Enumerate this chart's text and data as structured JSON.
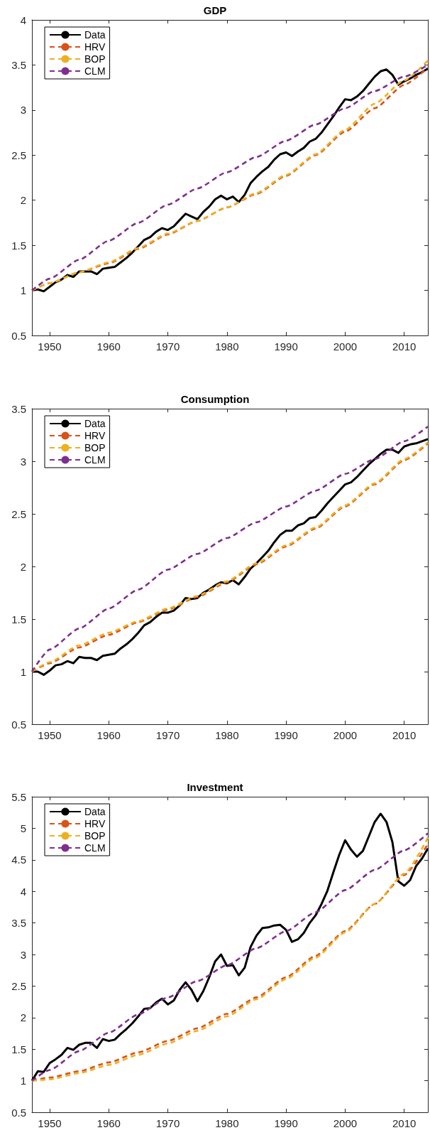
{
  "chart_data": [
    {
      "type": "line",
      "title": "GDP",
      "xlim": [
        1947,
        2014
      ],
      "xticks": [
        1950,
        1960,
        1970,
        1980,
        1990,
        2000,
        2010
      ],
      "ylim": [
        0.5,
        4
      ],
      "yticks": [
        0.5,
        1,
        1.5,
        2,
        2.5,
        3,
        3.5,
        4
      ],
      "grid": false,
      "legend": "top left",
      "marker": "none",
      "series": [
        {
          "name": "Data",
          "color": "#000000",
          "line_style": "solid",
          "x": [
            1947,
            1948,
            1949,
            1950,
            1951,
            1952,
            1953,
            1954,
            1955,
            1956,
            1957,
            1958,
            1959,
            1960,
            1961,
            1962,
            1963,
            1964,
            1965,
            1966,
            1967,
            1968,
            1969,
            1970,
            1971,
            1972,
            1973,
            1974,
            1975,
            1976,
            1977,
            1978,
            1979,
            1980,
            1981,
            1982,
            1983,
            1984,
            1985,
            1986,
            1987,
            1988,
            1989,
            1990,
            1991,
            1992,
            1993,
            1994,
            1995,
            1996,
            1997,
            1998,
            1999,
            2000,
            2001,
            2002,
            2003,
            2004,
            2005,
            2006,
            2007,
            2008,
            2009,
            2010,
            2011,
            2012,
            2013,
            2014
          ],
          "values": [
            1.0,
            1.01,
            0.99,
            1.04,
            1.09,
            1.12,
            1.17,
            1.15,
            1.21,
            1.21,
            1.21,
            1.18,
            1.24,
            1.25,
            1.26,
            1.31,
            1.36,
            1.42,
            1.49,
            1.56,
            1.59,
            1.65,
            1.69,
            1.67,
            1.71,
            1.78,
            1.85,
            1.82,
            1.79,
            1.87,
            1.93,
            2.01,
            2.05,
            2.01,
            2.04,
            1.98,
            2.06,
            2.19,
            2.26,
            2.32,
            2.37,
            2.45,
            2.51,
            2.53,
            2.49,
            2.54,
            2.58,
            2.65,
            2.68,
            2.75,
            2.84,
            2.93,
            3.03,
            3.12,
            3.11,
            3.15,
            3.21,
            3.29,
            3.37,
            3.43,
            3.45,
            3.39,
            3.28,
            3.32,
            3.35,
            3.39,
            3.42,
            3.46
          ]
        },
        {
          "name": "HRV",
          "color": "#d95319",
          "line_style": "dashed",
          "x": [
            1947,
            1950,
            1955,
            1960,
            1965,
            1970,
            1975,
            1980,
            1985,
            1990,
            1995,
            2000,
            2005,
            2010,
            2014
          ],
          "values": [
            1.0,
            1.08,
            1.2,
            1.3,
            1.46,
            1.62,
            1.77,
            1.92,
            2.07,
            2.27,
            2.5,
            2.76,
            3.02,
            3.28,
            3.47
          ]
        },
        {
          "name": "BOP",
          "color": "#edb120",
          "line_style": "dashed",
          "x": [
            1947,
            1950,
            1955,
            1960,
            1965,
            1970,
            1975,
            1980,
            1985,
            1990,
            1995,
            2000,
            2005,
            2010,
            2014
          ],
          "values": [
            1.0,
            1.08,
            1.2,
            1.31,
            1.47,
            1.63,
            1.77,
            1.92,
            2.08,
            2.28,
            2.51,
            2.78,
            3.07,
            3.33,
            3.55
          ]
        },
        {
          "name": "CLM",
          "color": "#7e2f8e",
          "line_style": "dashed",
          "x": [
            1947,
            1950,
            1955,
            1960,
            1965,
            1970,
            1975,
            1980,
            1985,
            1990,
            1995,
            2000,
            2005,
            2010,
            2014
          ],
          "values": [
            1.0,
            1.13,
            1.34,
            1.55,
            1.75,
            1.95,
            2.13,
            2.31,
            2.48,
            2.66,
            2.84,
            3.02,
            3.21,
            3.37,
            3.5
          ]
        }
      ]
    },
    {
      "type": "line",
      "title": "Consumption",
      "xlim": [
        1947,
        2014
      ],
      "xticks": [
        1950,
        1960,
        1970,
        1980,
        1990,
        2000,
        2010
      ],
      "ylim": [
        0.5,
        3.5
      ],
      "yticks": [
        0.5,
        1,
        1.5,
        2,
        2.5,
        3,
        3.5
      ],
      "grid": false,
      "legend": "top left",
      "marker": "none",
      "series": [
        {
          "name": "Data",
          "color": "#000000",
          "line_style": "solid",
          "x": [
            1947,
            1948,
            1949,
            1950,
            1951,
            1952,
            1953,
            1954,
            1955,
            1956,
            1957,
            1958,
            1959,
            1960,
            1961,
            1962,
            1963,
            1964,
            1965,
            1966,
            1967,
            1968,
            1969,
            1970,
            1971,
            1972,
            1973,
            1974,
            1975,
            1976,
            1977,
            1978,
            1979,
            1980,
            1981,
            1982,
            1983,
            1984,
            1985,
            1986,
            1987,
            1988,
            1989,
            1990,
            1991,
            1992,
            1993,
            1994,
            1995,
            1996,
            1997,
            1998,
            1999,
            2000,
            2001,
            2002,
            2003,
            2004,
            2005,
            2006,
            2007,
            2008,
            2009,
            2010,
            2011,
            2012,
            2013,
            2014
          ],
          "values": [
            1.0,
            1.0,
            0.97,
            1.01,
            1.06,
            1.07,
            1.1,
            1.08,
            1.14,
            1.13,
            1.13,
            1.11,
            1.15,
            1.16,
            1.17,
            1.22,
            1.26,
            1.31,
            1.37,
            1.44,
            1.47,
            1.52,
            1.56,
            1.56,
            1.58,
            1.63,
            1.7,
            1.69,
            1.7,
            1.75,
            1.78,
            1.82,
            1.85,
            1.84,
            1.87,
            1.83,
            1.9,
            1.98,
            2.03,
            2.09,
            2.15,
            2.23,
            2.3,
            2.34,
            2.34,
            2.39,
            2.41,
            2.46,
            2.47,
            2.53,
            2.6,
            2.66,
            2.72,
            2.78,
            2.8,
            2.85,
            2.91,
            2.97,
            3.02,
            3.07,
            3.11,
            3.11,
            3.08,
            3.14,
            3.16,
            3.17,
            3.19,
            3.21
          ]
        },
        {
          "name": "HRV",
          "color": "#d95319",
          "line_style": "dashed",
          "x": [
            1947,
            1950,
            1955,
            1960,
            1965,
            1970,
            1975,
            1980,
            1985,
            1990,
            1995,
            2000,
            2005,
            2010,
            2014
          ],
          "values": [
            1.0,
            1.08,
            1.23,
            1.35,
            1.47,
            1.59,
            1.71,
            1.85,
            2.02,
            2.19,
            2.36,
            2.57,
            2.78,
            3.01,
            3.17
          ]
        },
        {
          "name": "BOP",
          "color": "#edb120",
          "line_style": "dashed",
          "x": [
            1947,
            1950,
            1955,
            1960,
            1965,
            1970,
            1975,
            1980,
            1985,
            1990,
            1995,
            2000,
            2005,
            2010,
            2014
          ],
          "values": [
            1.0,
            1.09,
            1.25,
            1.37,
            1.48,
            1.6,
            1.72,
            1.86,
            2.03,
            2.2,
            2.37,
            2.58,
            2.79,
            3.02,
            3.18
          ]
        },
        {
          "name": "CLM",
          "color": "#7e2f8e",
          "line_style": "dashed",
          "x": [
            1947,
            1950,
            1955,
            1960,
            1965,
            1970,
            1975,
            1980,
            1985,
            1990,
            1995,
            2000,
            2005,
            2010,
            2014
          ],
          "values": [
            1.0,
            1.21,
            1.41,
            1.6,
            1.78,
            1.97,
            2.12,
            2.27,
            2.42,
            2.57,
            2.72,
            2.88,
            3.02,
            3.19,
            3.33
          ]
        }
      ]
    },
    {
      "type": "line",
      "title": "Investment",
      "xlim": [
        1947,
        2014
      ],
      "xticks": [
        1950,
        1960,
        1970,
        1980,
        1990,
        2000,
        2010
      ],
      "ylim": [
        0.5,
        5.5
      ],
      "yticks": [
        0.5,
        1,
        1.5,
        2,
        2.5,
        3,
        3.5,
        4,
        4.5,
        5,
        5.5
      ],
      "grid": false,
      "legend": "top left",
      "marker": "none",
      "series": [
        {
          "name": "Data",
          "color": "#000000",
          "line_style": "solid",
          "x": [
            1947,
            1948,
            1949,
            1950,
            1951,
            1952,
            1953,
            1954,
            1955,
            1956,
            1957,
            1958,
            1959,
            1960,
            1961,
            1962,
            1963,
            1964,
            1965,
            1966,
            1967,
            1968,
            1969,
            1970,
            1971,
            1972,
            1973,
            1974,
            1975,
            1976,
            1977,
            1978,
            1979,
            1980,
            1981,
            1982,
            1983,
            1984,
            1985,
            1986,
            1987,
            1988,
            1989,
            1990,
            1991,
            1992,
            1993,
            1994,
            1995,
            1996,
            1997,
            1998,
            1999,
            2000,
            2001,
            2002,
            2003,
            2004,
            2005,
            2006,
            2007,
            2008,
            2009,
            2010,
            2011,
            2012,
            2013,
            2014
          ],
          "values": [
            1.0,
            1.15,
            1.14,
            1.28,
            1.34,
            1.41,
            1.52,
            1.49,
            1.57,
            1.6,
            1.6,
            1.52,
            1.66,
            1.63,
            1.65,
            1.74,
            1.82,
            1.91,
            2.02,
            2.14,
            2.15,
            2.24,
            2.3,
            2.21,
            2.27,
            2.44,
            2.56,
            2.44,
            2.26,
            2.42,
            2.64,
            2.89,
            3.0,
            2.82,
            2.83,
            2.67,
            2.79,
            3.12,
            3.3,
            3.42,
            3.43,
            3.46,
            3.47,
            3.39,
            3.2,
            3.24,
            3.34,
            3.5,
            3.62,
            3.8,
            4.01,
            4.3,
            4.58,
            4.81,
            4.66,
            4.55,
            4.64,
            4.87,
            5.1,
            5.23,
            5.1,
            4.78,
            4.16,
            4.09,
            4.18,
            4.4,
            4.52,
            4.68
          ]
        },
        {
          "name": "HRV",
          "color": "#d95319",
          "line_style": "dashed",
          "x": [
            1947,
            1950,
            1955,
            1960,
            1965,
            1970,
            1975,
            1980,
            1985,
            1990,
            1995,
            2000,
            2005,
            2010,
            2014
          ],
          "values": [
            1.0,
            1.05,
            1.15,
            1.29,
            1.45,
            1.63,
            1.83,
            2.06,
            2.32,
            2.64,
            2.98,
            3.37,
            3.8,
            4.26,
            4.75
          ]
        },
        {
          "name": "BOP",
          "color": "#edb120",
          "line_style": "dashed",
          "x": [
            1947,
            1950,
            1955,
            1960,
            1965,
            1970,
            1975,
            1980,
            1985,
            1990,
            1995,
            2000,
            2005,
            2010,
            2014
          ],
          "values": [
            1.0,
            1.02,
            1.12,
            1.25,
            1.41,
            1.59,
            1.79,
            2.02,
            2.29,
            2.61,
            2.95,
            3.35,
            3.8,
            4.28,
            4.85
          ]
        },
        {
          "name": "CLM",
          "color": "#7e2f8e",
          "line_style": "dashed",
          "x": [
            1947,
            1950,
            1955,
            1960,
            1965,
            1970,
            1975,
            1980,
            1985,
            1990,
            1995,
            2000,
            2005,
            2010,
            2014
          ],
          "values": [
            1.0,
            1.17,
            1.47,
            1.76,
            2.05,
            2.32,
            2.58,
            2.83,
            3.1,
            3.37,
            3.67,
            4.02,
            4.34,
            4.65,
            4.92
          ]
        }
      ]
    }
  ]
}
